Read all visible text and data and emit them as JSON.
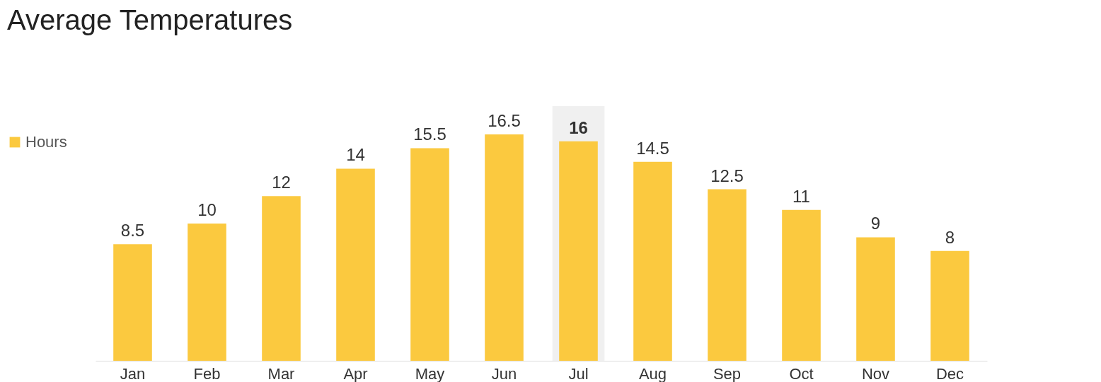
{
  "chart_data": {
    "type": "bar",
    "title": "Average Temperatures",
    "categories": [
      "Jan",
      "Feb",
      "Mar",
      "Apr",
      "May",
      "Jun",
      "Jul",
      "Aug",
      "Sep",
      "Oct",
      "Nov",
      "Dec"
    ],
    "series": [
      {
        "name": "Hours",
        "color": "#fbc93f",
        "values": [
          8.5,
          10,
          12,
          14,
          15.5,
          16.5,
          16,
          14.5,
          12.5,
          11,
          9,
          8
        ]
      }
    ],
    "data_labels": true,
    "legend": "left",
    "grid": false,
    "bands": [
      {
        "axis": "x",
        "from": "Jul",
        "to": "Jul",
        "color": "#f0f0f0"
      }
    ]
  }
}
